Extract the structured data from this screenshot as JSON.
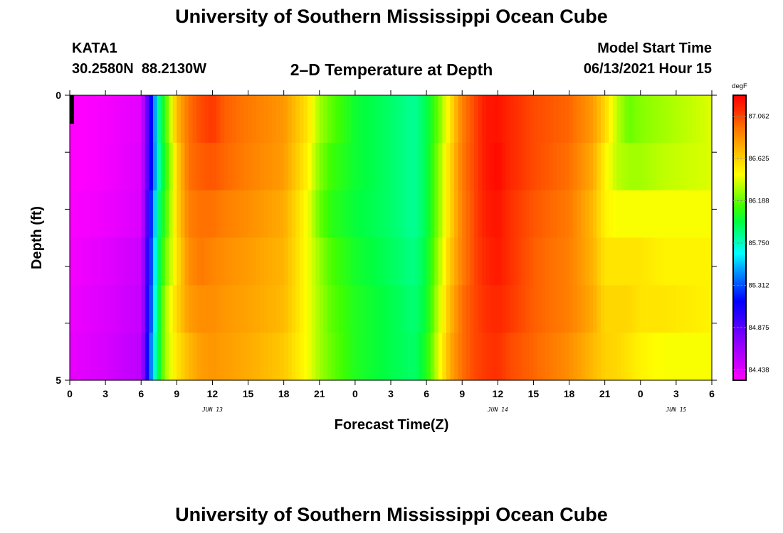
{
  "page": {
    "title": "University of Southern Mississippi Ocean Cube",
    "footer_title": "University of Southern Mississippi Ocean Cube",
    "station_id": "KATA1",
    "coordinates": "30.2580N  88.2130W",
    "plot_title": "2–D Temperature at Depth",
    "model_start_label": "Model Start Time",
    "model_start_value": "06/13/2021 Hour 15"
  },
  "chart_data": {
    "type": "heatmap",
    "title": "2–D Temperature at Depth",
    "xlabel": "Forecast Time(Z)",
    "ylabel": "Depth (ft)",
    "x_unit": "forecast hour",
    "x_range": [
      0,
      54
    ],
    "x_tick_values": [
      0,
      3,
      6,
      9,
      12,
      15,
      18,
      21,
      24,
      27,
      30,
      33,
      36,
      39,
      42,
      45,
      48,
      51,
      54
    ],
    "x_tick_labels": [
      "0",
      "3",
      "6",
      "9",
      "12",
      "15",
      "18",
      "21",
      "0",
      "3",
      "6",
      "9",
      "12",
      "15",
      "18",
      "21",
      "0",
      "3",
      "6"
    ],
    "x_date_labels": [
      {
        "x": 12,
        "label": "JUN 13"
      },
      {
        "x": 36,
        "label": "JUN 14"
      },
      {
        "x": 51,
        "label": "JUN 15"
      }
    ],
    "y_range": [
      0,
      5
    ],
    "y_inverted": true,
    "y_tick_labels": [
      {
        "value": 0,
        "label": "0"
      },
      {
        "value": 5,
        "label": "5"
      }
    ],
    "y_minor_ticks": [
      1,
      2,
      3,
      4
    ],
    "depth_levels": [
      0.25,
      1.0,
      2.0,
      3.0,
      4.0,
      4.75
    ],
    "time_hours": [
      0,
      3,
      6,
      7,
      7.5,
      8,
      9,
      10,
      11,
      12,
      13,
      15,
      18,
      20,
      21,
      22,
      24,
      27,
      29,
      30,
      31,
      32,
      33,
      34,
      35,
      36,
      37,
      39,
      42,
      44,
      45,
      46,
      47,
      48,
      50,
      54
    ],
    "temperature": [
      [
        84.32,
        84.36,
        84.42,
        85.3,
        85.85,
        86.1,
        86.7,
        86.95,
        87.05,
        87.1,
        87.0,
        86.92,
        86.82,
        86.55,
        86.3,
        86.18,
        86.0,
        85.9,
        85.82,
        85.95,
        86.2,
        86.55,
        86.9,
        87.05,
        87.2,
        87.22,
        87.15,
        87.05,
        86.98,
        86.8,
        86.6,
        86.35,
        86.2,
        86.25,
        86.3,
        86.4
      ],
      [
        84.32,
        84.36,
        84.44,
        85.3,
        85.8,
        86.05,
        86.6,
        86.95,
        87.0,
        87.02,
        86.98,
        86.9,
        86.8,
        86.5,
        86.25,
        86.12,
        86.0,
        85.9,
        85.82,
        85.95,
        86.25,
        86.6,
        86.92,
        87.05,
        87.2,
        87.25,
        87.15,
        87.05,
        86.95,
        86.75,
        86.5,
        86.35,
        86.3,
        86.3,
        86.35,
        86.4
      ],
      [
        84.34,
        84.38,
        84.45,
        85.4,
        85.9,
        86.1,
        86.6,
        86.9,
        86.95,
        86.95,
        86.9,
        86.85,
        86.75,
        86.45,
        86.2,
        86.08,
        85.98,
        85.9,
        85.82,
        85.95,
        86.25,
        86.6,
        86.9,
        87.05,
        87.18,
        87.22,
        87.12,
        87.02,
        86.92,
        86.7,
        86.5,
        86.45,
        86.45,
        86.45,
        86.45,
        86.45
      ],
      [
        84.36,
        84.42,
        84.5,
        85.45,
        85.95,
        86.2,
        86.55,
        86.85,
        86.92,
        86.88,
        86.85,
        86.8,
        86.72,
        86.45,
        86.28,
        86.15,
        86.02,
        85.92,
        85.85,
        85.98,
        86.3,
        86.65,
        86.9,
        87.05,
        87.15,
        87.2,
        87.12,
        87.0,
        86.9,
        86.72,
        86.55,
        86.55,
        86.55,
        86.55,
        86.5,
        86.5
      ],
      [
        84.38,
        84.44,
        84.52,
        85.5,
        86.0,
        86.3,
        86.6,
        86.8,
        86.85,
        86.85,
        86.82,
        86.78,
        86.7,
        86.45,
        86.3,
        86.18,
        86.05,
        85.95,
        85.88,
        86.0,
        86.35,
        86.7,
        86.95,
        87.05,
        87.12,
        87.15,
        87.1,
        87.0,
        86.9,
        86.75,
        86.6,
        86.6,
        86.6,
        86.55,
        86.55,
        86.5
      ],
      [
        84.4,
        84.46,
        84.55,
        85.6,
        86.0,
        86.3,
        86.55,
        86.7,
        86.8,
        86.82,
        86.8,
        86.75,
        86.65,
        86.45,
        86.3,
        86.2,
        86.05,
        85.95,
        85.9,
        86.05,
        86.4,
        86.75,
        86.95,
        87.05,
        87.1,
        87.12,
        87.05,
        86.98,
        86.85,
        86.7,
        86.62,
        86.6,
        86.55,
        86.5,
        86.45,
        86.45
      ]
    ],
    "colorbar": {
      "unit_label": "degF",
      "range": [
        84.33,
        87.28
      ],
      "tick_values": [
        84.438,
        84.875,
        85.312,
        85.75,
        86.188,
        86.625,
        87.062
      ],
      "tick_labels": [
        "84.438",
        "84.875",
        "85.312",
        "85.750",
        "86.188",
        "86.625",
        "87.062"
      ],
      "colors": [
        "#ff00ff",
        "#cc00ff",
        "#a000ff",
        "#7000ff",
        "#3000ff",
        "#0000ff",
        "#0050ff",
        "#00a0ff",
        "#00ffff",
        "#00ffa0",
        "#00ff40",
        "#40ff00",
        "#a0ff00",
        "#ffff00",
        "#ffd000",
        "#ffa000",
        "#ff7000",
        "#ff3000",
        "#ff0000"
      ]
    }
  }
}
